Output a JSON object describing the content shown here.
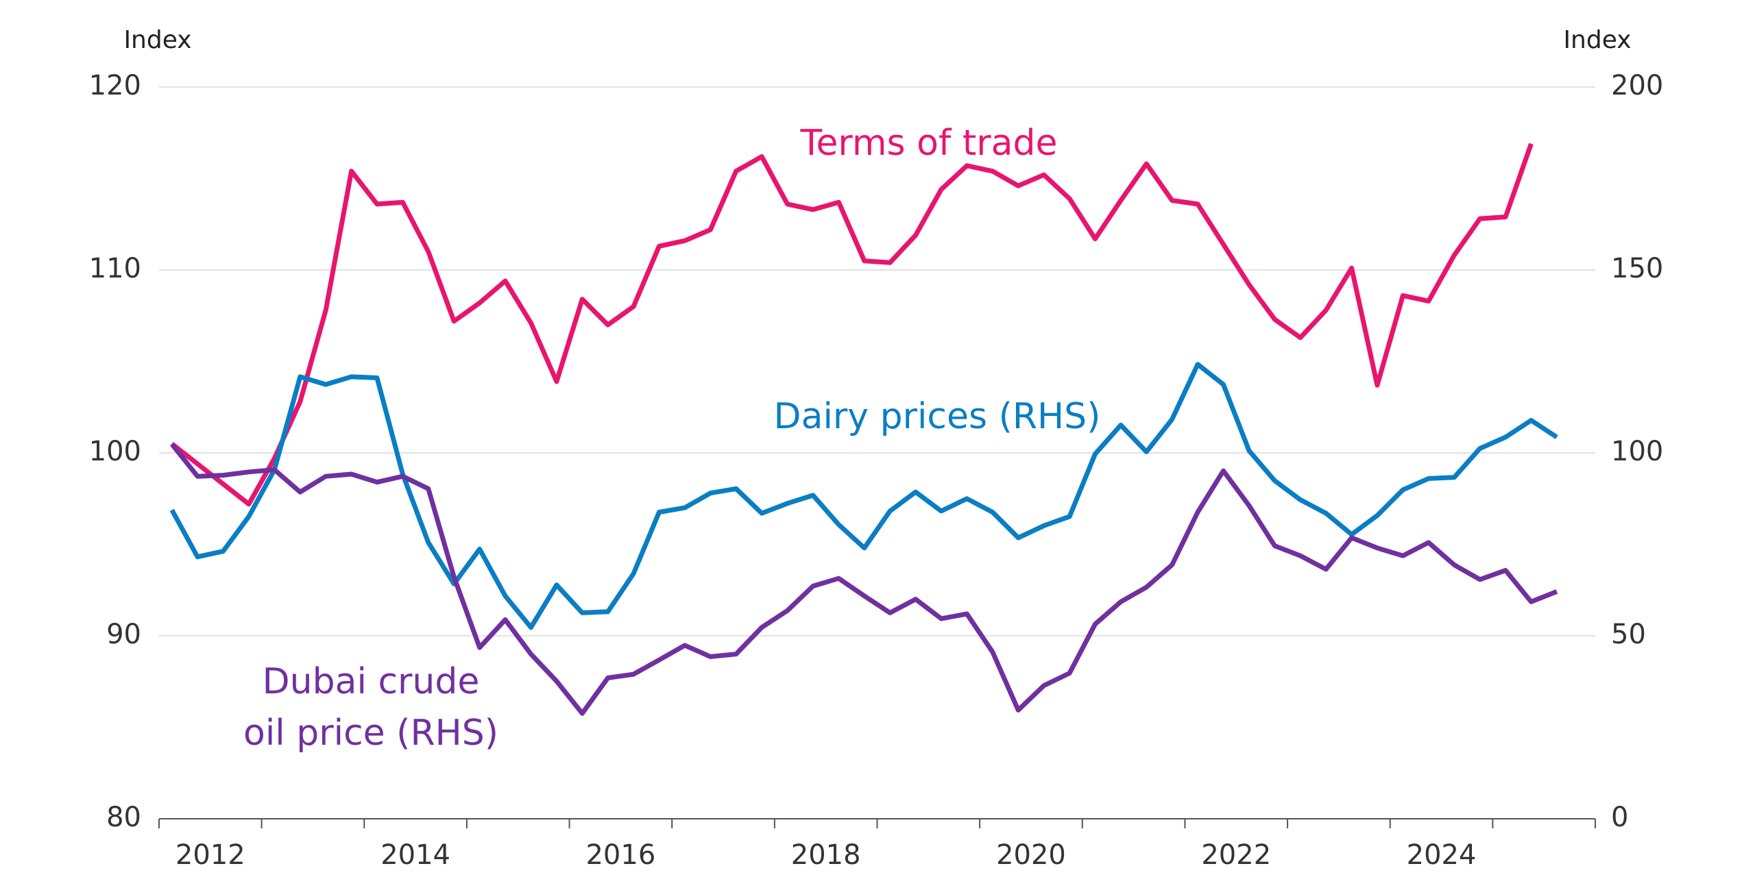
{
  "chart_data": {
    "type": "line",
    "y_label": "Index",
    "y2_label": "Index",
    "x": [
      2012.125,
      2012.375,
      2012.625,
      2012.875,
      2013.125,
      2013.375,
      2013.625,
      2013.875,
      2014.125,
      2014.375,
      2014.625,
      2014.875,
      2015.125,
      2015.375,
      2015.625,
      2015.875,
      2016.125,
      2016.375,
      2016.625,
      2016.875,
      2017.125,
      2017.375,
      2017.625,
      2017.875,
      2018.125,
      2018.375,
      2018.625,
      2018.875,
      2019.125,
      2019.375,
      2019.625,
      2019.875,
      2020.125,
      2020.375,
      2020.625,
      2020.875,
      2021.125,
      2021.375,
      2021.625,
      2021.875,
      2022.125,
      2022.375,
      2022.625,
      2022.875,
      2023.125,
      2023.375,
      2023.625,
      2023.875,
      2024.125,
      2024.375,
      2024.625,
      2024.875,
      2025.125,
      2025.375,
      2025.625
    ],
    "xlim": [
      2012,
      2026
    ],
    "xticks": [
      {
        "value": 2012.5,
        "label": "2012"
      },
      {
        "value": 2014.5,
        "label": "2014"
      },
      {
        "value": 2016.5,
        "label": "2016"
      },
      {
        "value": 2018.5,
        "label": "2018"
      },
      {
        "value": 2020.5,
        "label": "2020"
      },
      {
        "value": 2022.5,
        "label": "2022"
      },
      {
        "value": 2024.5,
        "label": "2024"
      }
    ],
    "ylim": [
      80,
      120
    ],
    "yticks": [
      80,
      90,
      100,
      110,
      120
    ],
    "y2lim": [
      0,
      200
    ],
    "y2ticks": [
      0,
      50,
      100,
      150,
      200
    ],
    "grid": true,
    "series": [
      {
        "name": "Terms of trade",
        "color": "#e8156f",
        "values": [
          100.5,
          99.4,
          98.3,
          97.2,
          99.7,
          102.8,
          107.8,
          115.4,
          113.6,
          113.7,
          111.0,
          107.2,
          108.2,
          109.4,
          107.1,
          103.9,
          108.4,
          107.0,
          108.0,
          111.3,
          111.6,
          112.2,
          115.4,
          116.2,
          113.6,
          113.3,
          113.7,
          110.5,
          110.4,
          111.9,
          114.4,
          115.7,
          115.4,
          114.6,
          115.2,
          113.9,
          111.7,
          113.8,
          115.8,
          113.8,
          113.6,
          111.4,
          109.2,
          107.3,
          106.3,
          107.8,
          110.1,
          103.7,
          108.6,
          108.3,
          110.8,
          112.8,
          112.9,
          116.9,
          null
        ]
      },
      {
        "name": "Dairy prices (RHS)",
        "color": "#0a7ec4",
        "axis": "y2",
        "values": [
          84.4,
          71.6,
          73.1,
          82.6,
          95.4,
          120.8,
          118.7,
          120.8,
          120.5,
          94.2,
          75.5,
          64.2,
          73.7,
          60.9,
          52.3,
          63.9,
          56.3,
          56.6,
          67.0,
          83.8,
          85.0,
          89.0,
          90.2,
          83.5,
          86.2,
          88.4,
          80.4,
          74.0,
          84.1,
          89.3,
          84.1,
          87.5,
          83.8,
          76.8,
          80.1,
          82.6,
          99.7,
          107.6,
          100.3,
          109.2,
          124.2,
          118.7,
          100.6,
          92.4,
          87.2,
          83.5,
          77.7,
          82.9,
          89.9,
          93.0,
          93.3,
          101.2,
          104.3,
          108.9,
          104.3
        ]
      },
      {
        "name": "Dubai crude oil price (RHS)",
        "color": "#7030a0",
        "axis": "y2",
        "values": [
          102.4,
          93.6,
          93.9,
          94.8,
          95.4,
          89.3,
          93.6,
          94.2,
          92.0,
          93.6,
          90.2,
          66.1,
          46.8,
          54.4,
          45.0,
          37.6,
          28.8,
          38.5,
          39.5,
          43.4,
          47.4,
          44.3,
          45.0,
          52.3,
          56.9,
          63.6,
          65.7,
          60.9,
          56.3,
          60.0,
          54.7,
          56.0,
          45.6,
          29.7,
          36.4,
          39.8,
          53.2,
          59.3,
          63.3,
          69.4,
          83.8,
          95.1,
          85.6,
          74.6,
          71.9,
          68.2,
          76.8,
          74.0,
          71.9,
          75.5,
          69.4,
          65.4,
          67.9,
          59.3,
          62.1
        ]
      }
    ]
  }
}
